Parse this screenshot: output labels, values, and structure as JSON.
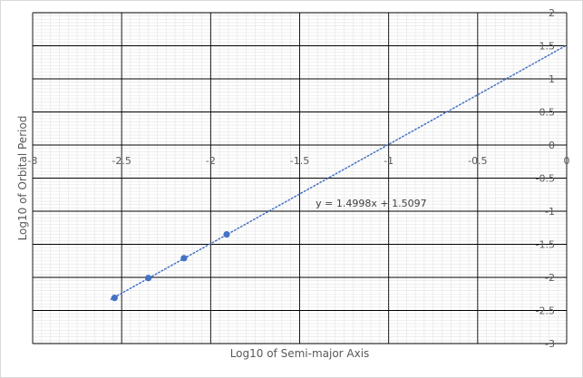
{
  "chart_data": {
    "type": "scatter",
    "xlabel": "Log10 of Semi-major Axis",
    "ylabel": "Log10 of Orbital Period",
    "xlim": [
      -3,
      0
    ],
    "ylim": [
      -3,
      2
    ],
    "x_ticks": [
      "-3",
      "-2.5",
      "-2",
      "-1.5",
      "-1",
      "-0.5",
      "0"
    ],
    "y_ticks": [
      "2",
      "1.5",
      "1",
      "0.5",
      "0",
      "-0.5",
      "-1",
      "-1.5",
      "-2",
      "-2.5",
      "-3"
    ],
    "series": [
      {
        "x": [
          -2.54,
          -2.35,
          -2.15,
          -1.91
        ],
        "y": [
          -2.31,
          -2.01,
          -1.71,
          -1.35
        ]
      }
    ],
    "trendline": {
      "slope": 1.4998,
      "intercept": 1.5097,
      "style": "dotted",
      "equation": "y = 1.4998x + 1.5097"
    },
    "grid": "major and minor",
    "colors": {
      "marker": "#4472c4",
      "trendline": "#4472c4",
      "major_grid": "#000000",
      "minor_grid": "#e4e4e4"
    }
  }
}
